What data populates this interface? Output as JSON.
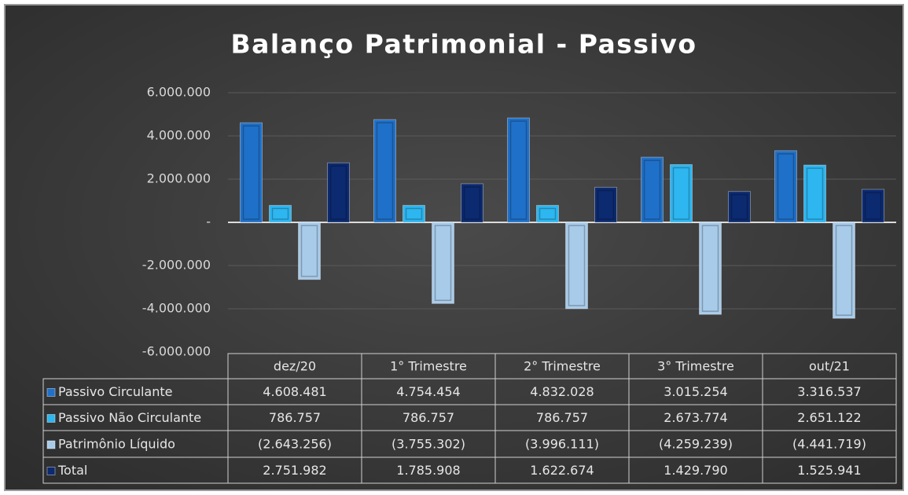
{
  "chart_data": {
    "type": "bar",
    "title": "Balanço Patrimonial - Passivo",
    "categories": [
      "dez/20",
      "1° Trimestre",
      "2° Trimestre",
      "3° Trimestre",
      "out/21"
    ],
    "ylim": [
      -6000000,
      6000000
    ],
    "yticks": [
      {
        "value": -6000000,
        "label": "-6.000.000"
      },
      {
        "value": -4000000,
        "label": "-4.000.000"
      },
      {
        "value": -2000000,
        "label": "-2.000.000"
      },
      {
        "value": 0,
        "label": "-"
      },
      {
        "value": 2000000,
        "label": "2.000.000"
      },
      {
        "value": 4000000,
        "label": "4.000.000"
      },
      {
        "value": 6000000,
        "label": "6.000.000"
      }
    ],
    "grid": true,
    "series": [
      {
        "name": "Passivo Circulante",
        "color": "#1f70c8",
        "values": [
          4608481,
          4754454,
          4832028,
          3015254,
          3316537
        ],
        "value_labels": [
          "4.608.481",
          "4.754.454",
          "4.832.028",
          "3.015.254",
          "3.316.537"
        ]
      },
      {
        "name": "Passivo Não Circulante",
        "color": "#2db6f0",
        "values": [
          786757,
          786757,
          786757,
          2673774,
          2651122
        ],
        "value_labels": [
          "786.757",
          "786.757",
          "786.757",
          "2.673.774",
          "2.651.122"
        ]
      },
      {
        "name": "Patrimônio Líquido",
        "color": "#a8cbea",
        "values": [
          -2643256,
          -3755302,
          -3996111,
          -4259239,
          -4441719
        ],
        "value_labels": [
          "(2.643.256)",
          "(3.755.302)",
          "(3.996.111)",
          "(4.259.239)",
          "(4.441.719)"
        ]
      },
      {
        "name": "Total",
        "color": "#0c2a70",
        "values": [
          2751982,
          1785908,
          1622674,
          1429790,
          1525941
        ],
        "value_labels": [
          "2.751.982",
          "1.785.908",
          "1.622.674",
          "1.429.790",
          "1.525.941"
        ]
      }
    ]
  }
}
